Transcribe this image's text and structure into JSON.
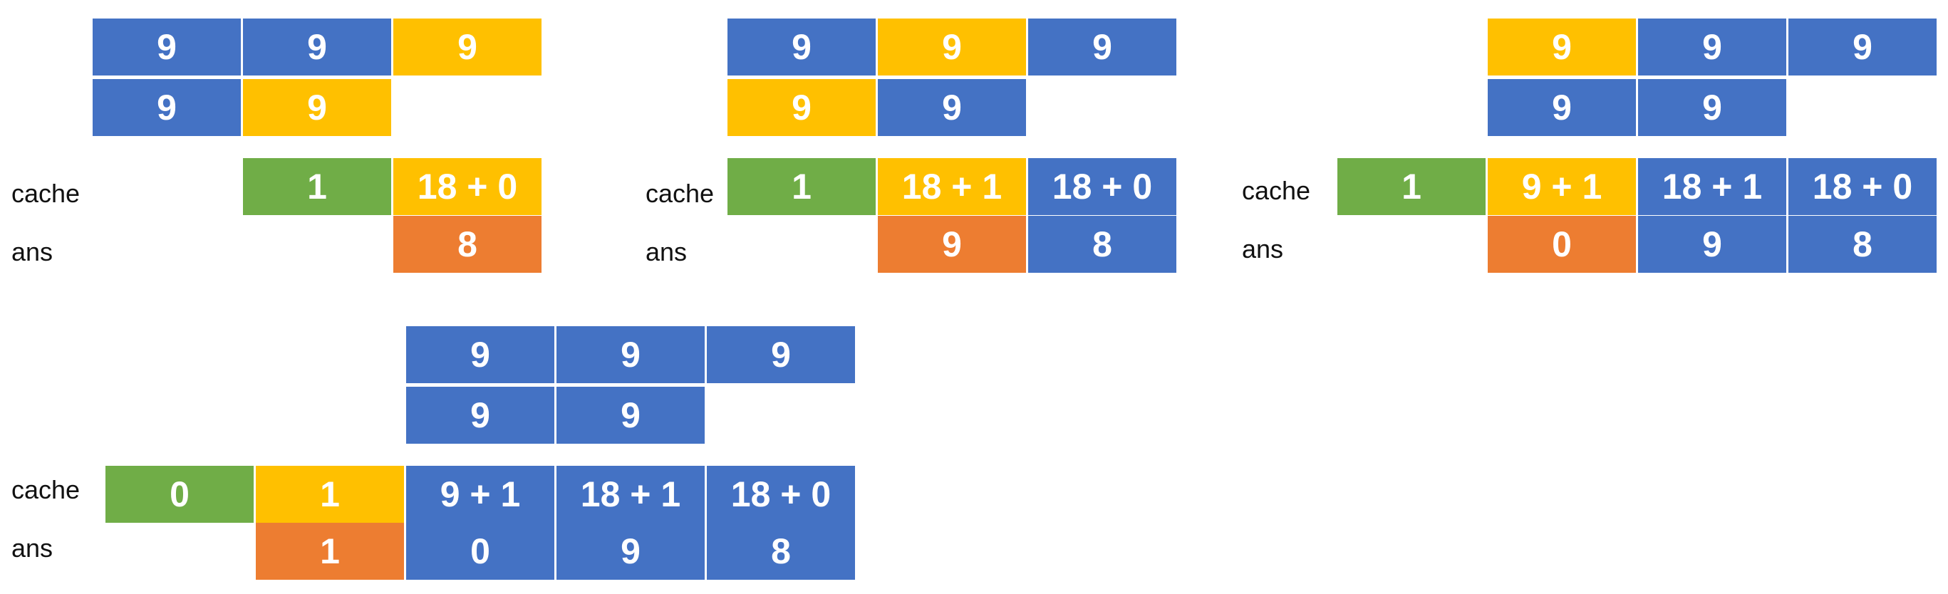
{
  "colors": {
    "blue": "#4472C4",
    "yellow": "#FFC000",
    "green": "#70AD47",
    "orange": "#ED7D31"
  },
  "row_labels": {
    "cache": "cache",
    "ans": "ans"
  },
  "panels": [
    {
      "operand_top": [
        {
          "text": "9",
          "color": "blue"
        },
        {
          "text": "9",
          "color": "blue"
        },
        {
          "text": "9",
          "color": "yellow"
        }
      ],
      "operand_bottom": [
        {
          "text": "9",
          "color": "blue"
        },
        {
          "text": "9",
          "color": "yellow"
        }
      ],
      "cache": [
        {
          "text": "1",
          "color": "green"
        },
        {
          "text": "18 + 0",
          "color": "yellow"
        }
      ],
      "ans": [
        {
          "text": "8",
          "color": "orange"
        }
      ]
    },
    {
      "operand_top": [
        {
          "text": "9",
          "color": "blue"
        },
        {
          "text": "9",
          "color": "yellow"
        },
        {
          "text": "9",
          "color": "blue"
        }
      ],
      "operand_bottom": [
        {
          "text": "9",
          "color": "yellow"
        },
        {
          "text": "9",
          "color": "blue"
        }
      ],
      "cache": [
        {
          "text": "1",
          "color": "green"
        },
        {
          "text": "18 + 1",
          "color": "yellow"
        },
        {
          "text": "18 + 0",
          "color": "blue"
        }
      ],
      "ans": [
        {
          "text": "9",
          "color": "orange"
        },
        {
          "text": "8",
          "color": "blue"
        }
      ]
    },
    {
      "operand_top": [
        {
          "text": "9",
          "color": "yellow"
        },
        {
          "text": "9",
          "color": "blue"
        },
        {
          "text": "9",
          "color": "blue"
        }
      ],
      "operand_bottom": [
        {
          "text": "9",
          "color": "blue"
        },
        {
          "text": "9",
          "color": "blue"
        }
      ],
      "cache": [
        {
          "text": "1",
          "color": "green"
        },
        {
          "text": "9 + 1",
          "color": "yellow"
        },
        {
          "text": "18 + 1",
          "color": "blue"
        },
        {
          "text": "18 + 0",
          "color": "blue"
        }
      ],
      "ans": [
        {
          "text": "0",
          "color": "orange"
        },
        {
          "text": "9",
          "color": "blue"
        },
        {
          "text": "8",
          "color": "blue"
        }
      ]
    },
    {
      "operand_top": [
        {
          "text": "9",
          "color": "blue"
        },
        {
          "text": "9",
          "color": "blue"
        },
        {
          "text": "9",
          "color": "blue"
        }
      ],
      "operand_bottom": [
        {
          "text": "9",
          "color": "blue"
        },
        {
          "text": "9",
          "color": "blue"
        }
      ],
      "cache": [
        {
          "text": "0",
          "color": "green"
        },
        {
          "text": "1",
          "color": "yellow"
        },
        {
          "text": "9 + 1",
          "color": "blue"
        },
        {
          "text": "18 + 1",
          "color": "blue"
        },
        {
          "text": "18 + 0",
          "color": "blue"
        }
      ],
      "ans": [
        {
          "text": "1",
          "color": "orange"
        },
        {
          "text": "0",
          "color": "blue"
        },
        {
          "text": "9",
          "color": "blue"
        },
        {
          "text": "8",
          "color": "blue"
        }
      ]
    }
  ]
}
